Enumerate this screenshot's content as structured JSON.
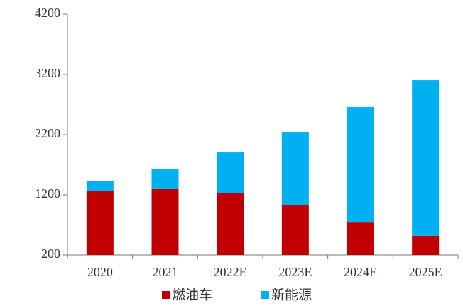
{
  "chart_data": {
    "type": "stacked_bar",
    "categories": [
      "2020",
      "2021",
      "2022E",
      "2023E",
      "2024E",
      "2025E"
    ],
    "series": [
      {
        "name": "燃油车",
        "color": "#c00000",
        "values": [
          1270,
          1295,
          1225,
          1025,
          740,
          520
        ]
      },
      {
        "name": "新能源",
        "color": "#00b0f0",
        "values": [
          155,
          340,
          680,
          1210,
          1920,
          2585
        ]
      }
    ],
    "ylim": [
      200,
      4200
    ],
    "yticks": [
      200,
      1200,
      2200,
      3200,
      4200
    ],
    "grid": false,
    "legend": "bottom"
  }
}
